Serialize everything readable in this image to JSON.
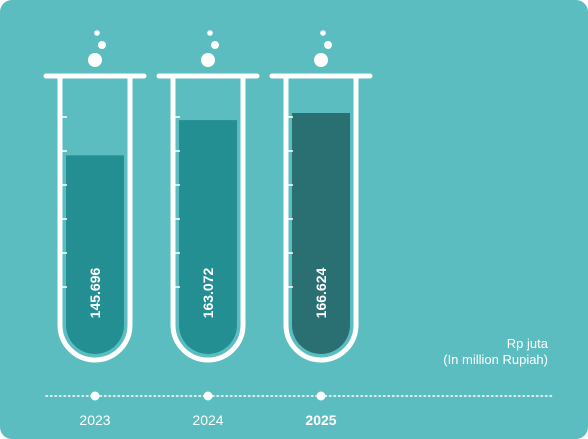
{
  "chart_data": {
    "type": "bar",
    "categories": [
      "2023",
      "2024",
      "2025"
    ],
    "values": [
      145.696,
      163.072,
      166.624
    ],
    "value_labels": [
      "145.696",
      "163.072",
      "166.624"
    ],
    "highlight_index": 2,
    "unit_line1": "Rp juta",
    "unit_line2": "(In million Rupiah)",
    "grid": false,
    "style": "test-tube"
  },
  "colors": {
    "background": "#5bbdbf",
    "tube_outline": "#ffffff",
    "liquid": "#238f92",
    "liquid_highlight": "#2a6f72",
    "text": "#ffffff"
  }
}
